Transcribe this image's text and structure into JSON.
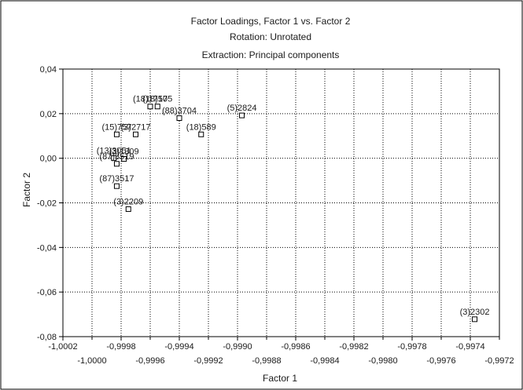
{
  "chart_data": {
    "type": "scatter",
    "title": "Factor Loadings, Factor 1 vs. Factor 2",
    "subtitle_lines": [
      "Rotation: Unrotated",
      "Extraction: Principal components"
    ],
    "xlabel": "Factor 1",
    "ylabel": "Factor 2",
    "xlim": [
      -1.0002,
      -0.9972
    ],
    "ylim": [
      -0.08,
      0.04
    ],
    "x_ticks_upper": [
      "-1,0002",
      "-0,9998",
      "-0,9994",
      "-0,9990",
      "-0,9986",
      "-0,9982",
      "-0,9978",
      "-0,9974"
    ],
    "x_ticks_lower": [
      "-1,0000",
      "-0,9996",
      "-0,9992",
      "-0,9988",
      "-0,9984",
      "-0,9980",
      "-0,9976",
      "-0,9972"
    ],
    "y_ticks": [
      "0,04",
      "0,02",
      "0,00",
      "-0,02",
      "-0,04",
      "-0,06",
      "-0,08"
    ],
    "grid": true,
    "points": [
      {
        "label": "(5)2824",
        "x": -0.99897,
        "y": 0.0192
      },
      {
        "label": "(88)3704",
        "x": -0.9994,
        "y": 0.018
      },
      {
        "label": "(18)589",
        "x": -0.99925,
        "y": 0.0107
      },
      {
        "label": "(18)1750",
        "x": -0.9996,
        "y": 0.0232
      },
      {
        "label": "(18)175",
        "x": -0.99955,
        "y": 0.0232
      },
      {
        "label": "(3)2717",
        "x": -0.9997,
        "y": 0.0107
      },
      {
        "label": "(15)757",
        "x": -0.99983,
        "y": 0.0107
      },
      {
        "label": "(13)3051",
        "x": -0.99985,
        "y": 0.0001
      },
      {
        "label": "(3)1309",
        "x": -0.99978,
        "y": -0.0003
      },
      {
        "label": "(87)3519",
        "x": -0.99983,
        "y": -0.0025
      },
      {
        "label": "(87)3517",
        "x": -0.99983,
        "y": -0.0125
      },
      {
        "label": "(3)2209",
        "x": -0.99975,
        "y": -0.0228
      },
      {
        "label": "(3)2302",
        "x": -0.99737,
        "y": -0.0722
      }
    ]
  }
}
